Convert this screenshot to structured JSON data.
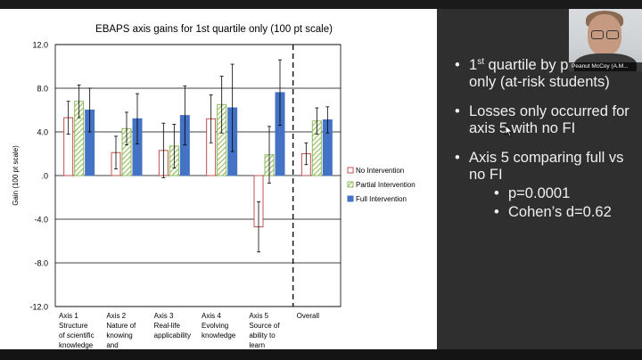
{
  "chart_data": {
    "type": "bar",
    "title": "EBAPS axis gains for 1st quartile only (100 pt scale)",
    "ylabel": "Gain (100 pt scale)",
    "ylim": [
      -12,
      12
    ],
    "yticks": [
      "12.0",
      "8.0",
      "4.0",
      ".0",
      "-4.0",
      "-8.0",
      "-12.0"
    ],
    "categories": [
      [
        "Axis 1",
        "Structure",
        "of scientific",
        "knowledge"
      ],
      [
        "Axis 2",
        "Nature of",
        "knowing",
        "and"
      ],
      [
        "Axis 3",
        "Real-life",
        "applicability"
      ],
      [
        "Axis 4",
        "Evolving",
        "knowledge"
      ],
      [
        "Axis 5",
        "Source of",
        "ability to",
        "learn"
      ],
      [
        "Overall"
      ]
    ],
    "series": [
      {
        "name": "No Intervention",
        "values": [
          5.3,
          2.1,
          2.3,
          5.2,
          -4.7,
          2.0
        ],
        "err": [
          1.5,
          1.5,
          2.5,
          2.2,
          2.3,
          1.0
        ]
      },
      {
        "name": "Partial Intervention",
        "values": [
          6.8,
          4.3,
          2.7,
          6.5,
          1.9,
          5.0
        ],
        "err": [
          1.5,
          1.5,
          2.0,
          2.6,
          2.6,
          1.2
        ]
      },
      {
        "name": "Full Intervention",
        "values": [
          6.0,
          5.2,
          5.5,
          6.2,
          7.6,
          5.1
        ],
        "err": [
          2.0,
          2.3,
          2.7,
          4.0,
          3.0,
          1.2
        ]
      }
    ],
    "grid": true,
    "legend": "right",
    "dashed_divider_before": "Overall"
  },
  "colors": {
    "no_intervention": "#c0504d",
    "partial_intervention": "#8fbc59",
    "full_intervention": "#4472c4",
    "slide_bg": "#2f2f2f"
  },
  "slide": {
    "bullets": [
      {
        "pre": "1",
        "sup": "st",
        "text": " quartile by pre score only (at-risk students)"
      },
      {
        "text": "Losses only occurred for axis 5 with no FI"
      },
      {
        "text": "Axis 5 comparing full vs no FI",
        "sub": [
          "p=0.0001",
          "Cohen’s d=0.62"
        ]
      }
    ],
    "dot": "•"
  },
  "webcam": {
    "name": "Peanut McCoy (A.M..."
  }
}
